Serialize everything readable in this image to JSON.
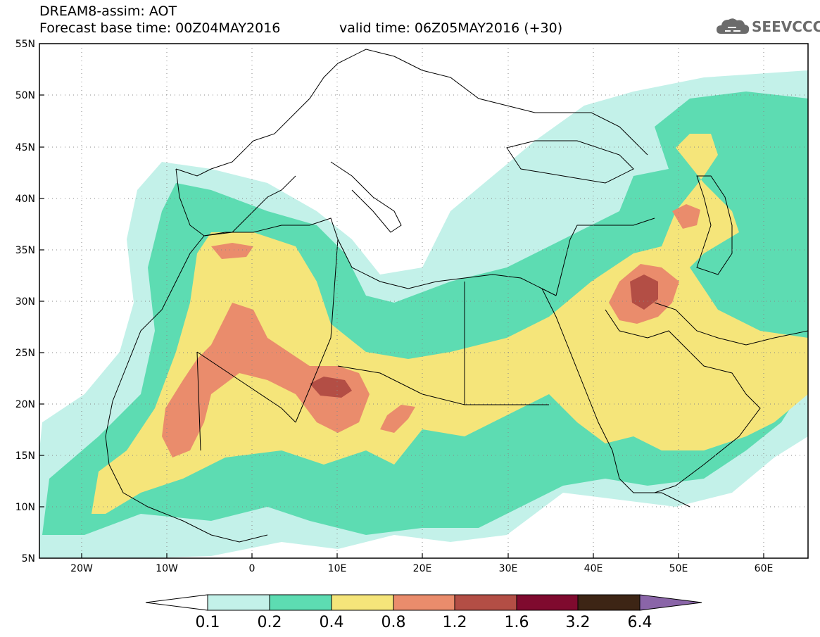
{
  "title": {
    "line1": "DREAM8-assim: AOT",
    "line2": "Forecast base time: 00Z04MAY2016",
    "valid": "valid time: 06Z05MAY2016 (+30)"
  },
  "logo": {
    "text": "SEEVCCC",
    "icon": "cloud-icon"
  },
  "map": {
    "lon_range": [
      -25,
      65
    ],
    "lat_range": [
      5,
      55
    ],
    "lon_ticks": [
      "20W",
      "10W",
      "0",
      "10E",
      "20E",
      "30E",
      "40E",
      "50E",
      "60E"
    ],
    "lat_ticks": [
      "5N",
      "10N",
      "15N",
      "20N",
      "25N",
      "30N",
      "35N",
      "40N",
      "45N",
      "50N",
      "55N"
    ],
    "grid": "dotted"
  },
  "colorbar": {
    "labels": [
      "0.1",
      "0.2",
      "0.4",
      "0.8",
      "1.2",
      "1.6",
      "3.2",
      "6.4"
    ],
    "colors": [
      "#ffffff",
      "#c3f1e9",
      "#5ddcb2",
      "#f5e57a",
      "#ea8c6c",
      "#b34e45",
      "#7f0a2e",
      "#3d2515",
      "#8a65a8"
    ]
  }
}
